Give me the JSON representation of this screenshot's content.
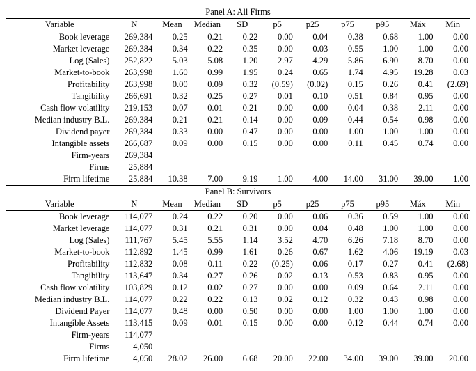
{
  "panels": [
    {
      "title": "Panel A: All Firms",
      "headers": [
        "Variable",
        "N",
        "Mean",
        "Median",
        "SD",
        "p5",
        "p25",
        "p75",
        "p95",
        "Máx",
        "Min"
      ],
      "rows": [
        [
          "Book leverage",
          "269,384",
          "0.25",
          "0.21",
          "0.22",
          "0.00",
          "0.04",
          "0.38",
          "0.68",
          "1.00",
          "0.00"
        ],
        [
          "Market leverage",
          "269,384",
          "0.34",
          "0.22",
          "0.35",
          "0.00",
          "0.03",
          "0.55",
          "1.00",
          "1.00",
          "0.00"
        ],
        [
          "Log (Sales)",
          "252,822",
          "5.03",
          "5.08",
          "1.20",
          "2.97",
          "4.29",
          "5.86",
          "6.90",
          "8.70",
          "0.00"
        ],
        [
          "Market-to-book",
          "263,998",
          "1.60",
          "0.99",
          "1.95",
          "0.24",
          "0.65",
          "1.74",
          "4.95",
          "19.28",
          "0.03"
        ],
        [
          "Profitability",
          "263,998",
          "0.00",
          "0.09",
          "0.32",
          "(0.59)",
          "(0.02)",
          "0.15",
          "0.26",
          "0.41",
          "(2.69)"
        ],
        [
          "Tangibility",
          "266,691",
          "0.32",
          "0.25",
          "0.27",
          "0.01",
          "0.10",
          "0.51",
          "0.84",
          "0.95",
          "0.00"
        ],
        [
          "Cash flow volatility",
          "219,153",
          "0.07",
          "0.01",
          "0.21",
          "0.00",
          "0.00",
          "0.04",
          "0.38",
          "2.11",
          "0.00"
        ],
        [
          "Median industry B.L.",
          "269,384",
          "0.21",
          "0.21",
          "0.14",
          "0.00",
          "0.09",
          "0.44",
          "0.54",
          "0.98",
          "0.00"
        ],
        [
          "Dividend payer",
          "269,384",
          "0.33",
          "0.00",
          "0.47",
          "0.00",
          "0.00",
          "1.00",
          "1.00",
          "1.00",
          "0.00"
        ],
        [
          "Intangible assets",
          "266,687",
          "0.09",
          "0.00",
          "0.15",
          "0.00",
          "0.00",
          "0.11",
          "0.45",
          "0.74",
          "0.00"
        ],
        [
          "Firm-years",
          "269,384",
          "",
          "",
          "",
          "",
          "",
          "",
          "",
          "",
          ""
        ],
        [
          "Firms",
          "25,884",
          "",
          "",
          "",
          "",
          "",
          "",
          "",
          "",
          ""
        ],
        [
          "Firm lifetime",
          "25,884",
          "10.38",
          "7.00",
          "9.19",
          "1.00",
          "4.00",
          "14.00",
          "31.00",
          "39.00",
          "1.00"
        ]
      ]
    },
    {
      "title": "Panel B: Survivors",
      "headers": [
        "Variable",
        "N",
        "Mean",
        "Median",
        "SD",
        "p5",
        "p25",
        "p75",
        "p95",
        "Máx",
        "Min"
      ],
      "rows": [
        [
          "Book leverage",
          "114,077",
          "0.24",
          "0.22",
          "0.20",
          "0.00",
          "0.06",
          "0.36",
          "0.59",
          "1.00",
          "0.00"
        ],
        [
          "Market leverage",
          "114,077",
          "0.31",
          "0.21",
          "0.31",
          "0.00",
          "0.04",
          "0.48",
          "1.00",
          "1.00",
          "0.00"
        ],
        [
          "Log (Sales)",
          "111,767",
          "5.45",
          "5.55",
          "1.14",
          "3.52",
          "4.70",
          "6.26",
          "7.18",
          "8.70",
          "0.00"
        ],
        [
          "Market-to-book",
          "112,892",
          "1.45",
          "0.99",
          "1.61",
          "0.26",
          "0.67",
          "1.62",
          "4.06",
          "19.19",
          "0.03"
        ],
        [
          "Profitability",
          "112,832",
          "0.08",
          "0.11",
          "0.22",
          "(0.25)",
          "0.06",
          "0.17",
          "0.27",
          "0.41",
          "(2.68)"
        ],
        [
          "Tangibility",
          "113,647",
          "0.34",
          "0.27",
          "0.26",
          "0.02",
          "0.13",
          "0.53",
          "0.83",
          "0.95",
          "0.00"
        ],
        [
          "Cash flow volatility",
          "103,829",
          "0.12",
          "0.02",
          "0.27",
          "0.00",
          "0.00",
          "0.09",
          "0.64",
          "2.11",
          "0.00"
        ],
        [
          "Median industry B.L.",
          "114,077",
          "0.22",
          "0.22",
          "0.13",
          "0.02",
          "0.12",
          "0.32",
          "0.43",
          "0.98",
          "0.00"
        ],
        [
          "Dividend Payer",
          "114,077",
          "0.48",
          "0.00",
          "0.50",
          "0.00",
          "0.00",
          "1.00",
          "1.00",
          "1.00",
          "0.00"
        ],
        [
          "Intangible Assets",
          "113,415",
          "0.09",
          "0.01",
          "0.15",
          "0.00",
          "0.00",
          "0.12",
          "0.44",
          "0.74",
          "0.00"
        ],
        [
          "Firm-years",
          "114,077",
          "",
          "",
          "",
          "",
          "",
          "",
          "",
          "",
          ""
        ],
        [
          "Firms",
          "4,050",
          "",
          "",
          "",
          "",
          "",
          "",
          "",
          "",
          ""
        ],
        [
          "Firm lifetime",
          "4,050",
          "28.02",
          "26.00",
          "6.68",
          "20.00",
          "22.00",
          "34.00",
          "39.00",
          "39.00",
          "20.00"
        ]
      ]
    }
  ]
}
